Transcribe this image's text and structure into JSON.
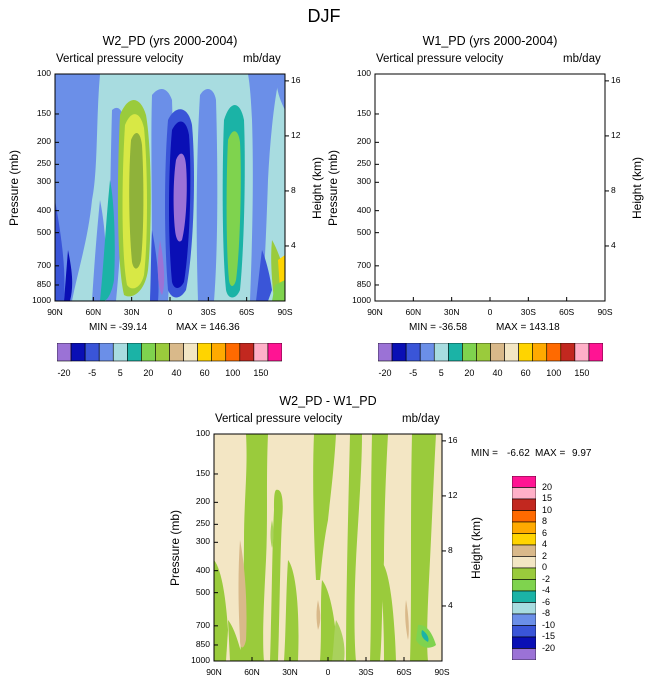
{
  "figure": {
    "title": "DJF",
    "colors": {
      "n20": "#9b72d6",
      "n15": "#0a0fb5",
      "n10": "#3a55d8",
      "n8": "#6b8fe8",
      "n6": "#a8dce0",
      "n4": "#1bb3a6",
      "n2": "#7fd34e",
      "z0": "#f3e6c4",
      "p2": "#d9b98a",
      "p4": "#ffd400",
      "p6": "#ffaa00",
      "p8": "#ff6a00",
      "p10": "#c2281f",
      "p15": "#ffb0c8",
      "p20": "#ff1493",
      "g1": "#9acb3c",
      "g2": "#a9d15c"
    }
  },
  "chart_data": [
    {
      "type": "contour",
      "name": "panel-left",
      "title": "W2_PD (yrs 2000-2004)",
      "subtitle_left": "Vertical pressure velocity",
      "subtitle_right": "mb/day",
      "ylabel": "Pressure (mb)",
      "y2label": "Height (km)",
      "x_ticks": [
        "90N",
        "60N",
        "30N",
        "0",
        "30S",
        "60S",
        "90S"
      ],
      "y_ticks": [
        "100",
        "150",
        "200",
        "250",
        "300",
        "400",
        "500",
        "700",
        "850",
        "1000"
      ],
      "y2_ticks": [
        "16",
        "12",
        "8",
        "4"
      ],
      "ylim": [
        1000,
        100
      ],
      "min_label": "MIN = -39.14",
      "max_label": "MAX = 146.36",
      "min": -39.14,
      "max": 146.36
    },
    {
      "type": "contour",
      "name": "panel-right",
      "title": "W1_PD (yrs 2000-2004)",
      "subtitle_left": "Vertical pressure velocity",
      "subtitle_right": "mb/day",
      "ylabel": "Pressure (mb)",
      "y2label": "Height (km)",
      "x_ticks": [
        "90N",
        "60N",
        "30N",
        "0",
        "30S",
        "60S",
        "90S"
      ],
      "y_ticks": [
        "100",
        "150",
        "200",
        "250",
        "300",
        "400",
        "500",
        "700",
        "850",
        "1000"
      ],
      "y2_ticks": [
        "16",
        "12",
        "8",
        "4"
      ],
      "ylim": [
        1000,
        100
      ],
      "min_label": "MIN = -36.58",
      "max_label": "MAX = 143.18",
      "min": -36.58,
      "max": 143.18
    },
    {
      "type": "contour",
      "name": "panel-diff",
      "title": "W2_PD - W1_PD",
      "subtitle_left": "Vertical pressure velocity",
      "subtitle_right": "mb/day",
      "ylabel": "Pressure (mb)",
      "y2label": "Height (km)",
      "x_ticks": [
        "90N",
        "60N",
        "30N",
        "0",
        "30S",
        "60S",
        "90S"
      ],
      "y_ticks": [
        "100",
        "150",
        "200",
        "250",
        "300",
        "400",
        "500",
        "700",
        "850",
        "1000"
      ],
      "y2_ticks": [
        "16",
        "12",
        "8",
        "4"
      ],
      "ylim": [
        1000,
        100
      ],
      "min_label": "MIN =",
      "max_label": "MAX =",
      "min_value": "-6.62",
      "max_value": "9.97",
      "min": -6.62,
      "max": 9.97
    }
  ],
  "colorbar_top": {
    "labels": [
      "-20",
      "-5",
      "5",
      "20",
      "40",
      "60",
      "100",
      "150"
    ],
    "colors": [
      "#9b72d6",
      "#0a0fb5",
      "#3a55d8",
      "#6b8fe8",
      "#a8dce0",
      "#1bb3a6",
      "#7fd34e",
      "#9acb3c",
      "#d9b98a",
      "#f3e6c4",
      "#ffd400",
      "#ffaa00",
      "#ff6a00",
      "#c2281f",
      "#ffb0c8",
      "#ff1493"
    ]
  },
  "colorbar_diff": {
    "labels": [
      "20",
      "15",
      "10",
      "8",
      "6",
      "4",
      "2",
      "0",
      "-2",
      "-4",
      "-6",
      "-8",
      "-10",
      "-15",
      "-20"
    ],
    "colors": [
      "#ff1493",
      "#ffb0c8",
      "#c2281f",
      "#ff6a00",
      "#ffaa00",
      "#ffd400",
      "#d9b98a",
      "#f3e6c4",
      "#9acb3c",
      "#7fd34e",
      "#1bb3a6",
      "#a8dce0",
      "#6b8fe8",
      "#3a55d8",
      "#0a0fb5",
      "#9b72d6"
    ]
  }
}
